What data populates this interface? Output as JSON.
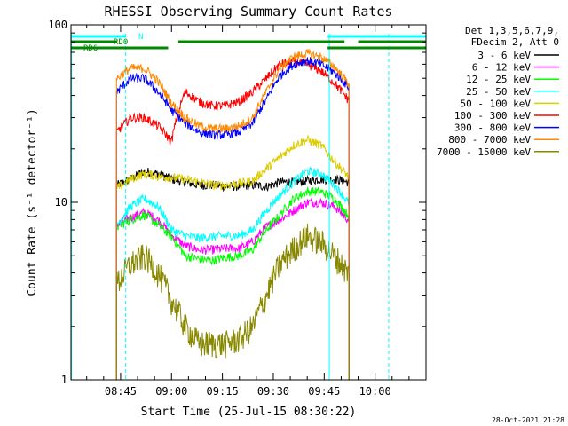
{
  "chart_data": {
    "type": "line",
    "title": "RHESSI Observing Summary Count Rates",
    "xlabel": "Start Time (25-Jul-15 08:30:22)",
    "ylabel": "Count Rate (s⁻¹ detector⁻¹)",
    "y_scale": "log",
    "ylim": [
      1,
      100
    ],
    "y_ticks": [
      {
        "value": 1,
        "label": "1"
      },
      {
        "value": 10,
        "label": "10"
      },
      {
        "value": 100,
        "label": "100"
      }
    ],
    "x_ticks": [
      "08:45",
      "09:00",
      "09:15",
      "09:30",
      "09:45",
      "10:00"
    ],
    "x_tick_minutes": [
      45,
      60,
      75,
      90,
      105,
      120
    ],
    "xlim_minutes": [
      30.37,
      135
    ],
    "legend_header": [
      "Det 1,3,5,6,7,9,",
      "FDecim 2, Att 0"
    ],
    "legend_position": "right",
    "series": [
      {
        "name": "3 - 6 keV",
        "color": "#000000",
        "minutes": [
          44,
          48,
          52,
          56,
          60,
          64,
          68,
          72,
          76,
          80,
          84,
          88,
          92,
          96,
          100,
          104,
          108,
          112
        ],
        "values": [
          12.5,
          13.5,
          15,
          14.5,
          13.5,
          13,
          12.5,
          12.5,
          12.3,
          12.3,
          12.5,
          12.3,
          13,
          13,
          13.2,
          13.5,
          13.5,
          13
        ]
      },
      {
        "name": "6 - 12 keV",
        "color": "#ff00ff",
        "minutes": [
          44,
          48,
          52,
          56,
          60,
          64,
          68,
          72,
          76,
          80,
          84,
          88,
          92,
          96,
          100,
          104,
          108,
          112
        ],
        "values": [
          7.5,
          8.2,
          8.8,
          8,
          6.5,
          5.7,
          5.4,
          5.4,
          5.5,
          5.5,
          6,
          7.3,
          8,
          9,
          10,
          10,
          9.5,
          8
        ]
      },
      {
        "name": "12 - 25 keV",
        "color": "#00ff00",
        "minutes": [
          44,
          48,
          52,
          56,
          60,
          64,
          68,
          72,
          76,
          80,
          84,
          88,
          92,
          96,
          100,
          104,
          108,
          112
        ],
        "values": [
          7.3,
          8,
          8.5,
          7.5,
          6.4,
          5,
          4.8,
          4.7,
          4.9,
          5,
          5.4,
          7,
          8.5,
          10.5,
          11.5,
          11.5,
          10.5,
          8.5
        ]
      },
      {
        "name": "25 - 50 keV",
        "color": "#00ffff",
        "minutes": [
          44,
          48,
          52,
          56,
          60,
          64,
          68,
          72,
          76,
          80,
          84,
          88,
          92,
          96,
          100,
          104,
          108,
          112
        ],
        "values": [
          7.5,
          9.5,
          10.5,
          9.5,
          7,
          6.5,
          6.3,
          6.4,
          6.5,
          6.5,
          7,
          9,
          11,
          13,
          15,
          14.5,
          12.5,
          10
        ]
      },
      {
        "name": "50 - 100 keV",
        "color": "#ddcc00",
        "minutes": [
          44,
          48,
          52,
          56,
          60,
          64,
          68,
          72,
          76,
          80,
          84,
          88,
          92,
          96,
          100,
          104,
          108,
          112
        ],
        "values": [
          12,
          13.5,
          14.5,
          14,
          13.8,
          13.5,
          13,
          12.5,
          12.5,
          12.8,
          13.2,
          15.5,
          18,
          21,
          22.5,
          21,
          17,
          14
        ]
      },
      {
        "name": "100 - 300 keV",
        "color": "#ff0000",
        "minutes": [
          44,
          48,
          52,
          56,
          60,
          64,
          68,
          72,
          76,
          80,
          84,
          88,
          92,
          96,
          100,
          104,
          108,
          112
        ],
        "values": [
          25,
          30,
          30,
          27,
          22,
          42,
          37,
          35,
          35,
          37,
          42,
          50,
          60,
          62,
          60,
          55,
          47,
          38
        ]
      },
      {
        "name": "300 - 800 keV",
        "color": "#0000ff",
        "minutes": [
          44,
          48,
          52,
          56,
          60,
          64,
          68,
          72,
          76,
          80,
          84,
          88,
          92,
          96,
          100,
          104,
          108,
          112
        ],
        "values": [
          42,
          50,
          50,
          42,
          33,
          28,
          25,
          24,
          24,
          25,
          28,
          38,
          52,
          60,
          63,
          60,
          54,
          45
        ]
      },
      {
        "name": "800 - 7000 keV",
        "color": "#ff8800",
        "minutes": [
          44,
          48,
          52,
          56,
          60,
          64,
          68,
          72,
          76,
          80,
          84,
          88,
          92,
          96,
          100,
          104,
          108,
          112
        ],
        "values": [
          50,
          57,
          57,
          48,
          36,
          30,
          27,
          26,
          26,
          27,
          30,
          42,
          57,
          66,
          69,
          66,
          58,
          47
        ]
      },
      {
        "name": "7000 - 15000 keV",
        "color": "#888800",
        "minutes": [
          44,
          48,
          52,
          56,
          60,
          64,
          68,
          72,
          76,
          80,
          84,
          88,
          92,
          96,
          100,
          104,
          108,
          112
        ],
        "values": [
          3.5,
          4.5,
          5,
          4,
          2.8,
          2,
          1.6,
          1.6,
          1.6,
          1.7,
          2,
          3,
          4.5,
          5.5,
          6.5,
          6,
          5,
          4
        ]
      }
    ],
    "status_bars": [
      {
        "label": "N",
        "color": "#00ffff",
        "segments_minutes": [
          [
            30.37,
            46.5
          ],
          [
            106,
            135
          ]
        ]
      },
      {
        "label": "RD0",
        "color": "#008800",
        "segments_minutes": [
          [
            30.37,
            44
          ],
          [
            62,
            111
          ],
          [
            115,
            135
          ]
        ]
      },
      {
        "label": "RD6",
        "color": "#008800",
        "segments_minutes": [
          [
            30.37,
            59
          ],
          [
            106,
            135
          ]
        ]
      }
    ],
    "vertical_markers": [
      {
        "style": "solid",
        "color": "#00ffff",
        "minute": 30.5
      },
      {
        "style": "dashed",
        "color": "#00ffff",
        "minute": 46.5
      },
      {
        "style": "solid",
        "color": "#00ffff",
        "minute": 106.5
      },
      {
        "style": "dashed",
        "color": "#00ffff",
        "minute": 124
      }
    ],
    "grid": false
  },
  "footer": {
    "timestamp": "28-Oct-2021 21:28"
  }
}
